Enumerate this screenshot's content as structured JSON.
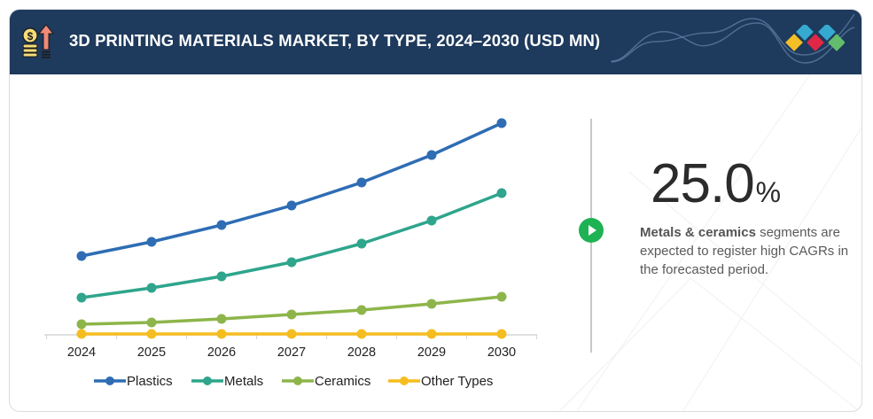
{
  "header": {
    "title": "3D PRINTING MATERIALS MARKET, BY TYPE, 2024–2030 (USD MN)",
    "icon": "money-growth-icon",
    "logo": "brand-diamonds-logo"
  },
  "highlight": {
    "cagr_value": "25.0",
    "cagr_unit": "%",
    "desc_bold": "Metals & ceramics",
    "desc_rest": " segments are expected to register high CAGRs in the forecasted period.",
    "play_icon": "play-icon"
  },
  "colors": {
    "header_bg": "#1e3a5c",
    "plastics": "#2e6db4",
    "metals": "#2ea58c",
    "ceramics": "#8db54a",
    "other": "#f5bd1f",
    "play": "#1eb254"
  },
  "chart_data": {
    "type": "line",
    "title": "3D PRINTING MATERIALS MARKET, BY TYPE, 2024–2030 (USD MN)",
    "xlabel": "",
    "ylabel": "",
    "y_axis_labels_shown": false,
    "grid": false,
    "legend_position": "bottom",
    "categories": [
      "2024",
      "2025",
      "2026",
      "2027",
      "2028",
      "2029",
      "2030"
    ],
    "ylim": [
      0,
      250
    ],
    "series": [
      {
        "name": "Plastics",
        "color": "#2e6db4",
        "values": [
          89,
          105,
          124,
          146,
          172,
          203,
          239
        ]
      },
      {
        "name": "Metals",
        "color": "#2ea58c",
        "values": [
          42,
          53,
          66,
          82,
          103,
          129,
          160
        ]
      },
      {
        "name": "Ceramics",
        "color": "#8db54a",
        "values": [
          12,
          14,
          18,
          23,
          28,
          35,
          43
        ]
      },
      {
        "name": "Other Types",
        "color": "#f5bd1f",
        "values": [
          1,
          1,
          1,
          1,
          1,
          1,
          1
        ]
      }
    ],
    "note": "Values are relative estimates (no y-axis scale shown in the figure)."
  }
}
